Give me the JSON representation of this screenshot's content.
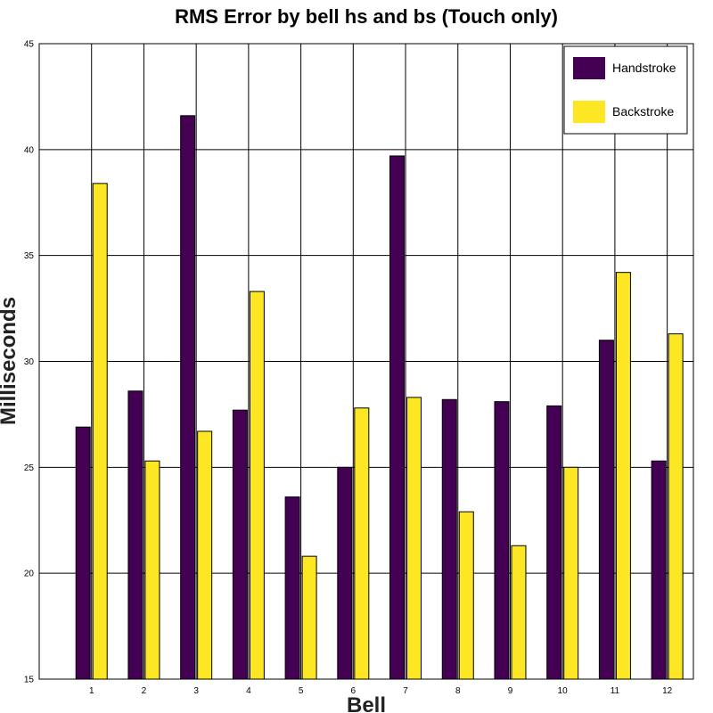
{
  "chart_data": {
    "type": "bar",
    "title": "RMS Error by bell hs and bs (Touch only)",
    "xlabel": "Bell",
    "ylabel": "Milliseconds",
    "categories": [
      "1",
      "2",
      "3",
      "4",
      "5",
      "6",
      "7",
      "8",
      "9",
      "10",
      "11",
      "12"
    ],
    "ylim": [
      15,
      45
    ],
    "yticks": [
      "15",
      "20",
      "25",
      "30",
      "35",
      "40",
      "45"
    ],
    "grid": true,
    "legend_position": "top-right",
    "series": [
      {
        "name": "Handstroke",
        "color": "#440154",
        "values": [
          26.9,
          28.6,
          41.6,
          27.7,
          23.6,
          25.0,
          39.7,
          28.2,
          28.1,
          27.9,
          31.0,
          25.3
        ]
      },
      {
        "name": "Backstroke",
        "color": "#FDE725",
        "values": [
          38.4,
          25.3,
          26.7,
          33.3,
          20.8,
          27.8,
          28.3,
          22.9,
          21.3,
          25.0,
          34.2,
          31.3
        ]
      }
    ]
  }
}
